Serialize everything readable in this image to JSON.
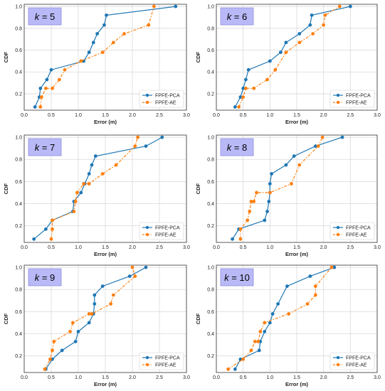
{
  "colors": {
    "pca": "#1f77b4",
    "ae": "#ff7f0e"
  },
  "chart_data": [
    {
      "type": "line",
      "title": "k = 5",
      "k_value": "5",
      "xlabel": "Error (m)",
      "ylabel": "CDF",
      "xlim": [
        0,
        3
      ],
      "ylim": [
        0.05,
        1.02
      ],
      "xticks": [
        "0.0",
        "0.5",
        "1.0",
        "1.5",
        "2.0",
        "2.5",
        "3.0"
      ],
      "yticks": [
        "0.2",
        "0.4",
        "0.6",
        "0.8",
        "1.0"
      ],
      "grid": true,
      "legend_position": "bottom-right",
      "series": [
        {
          "name": "FPFE-PCA",
          "style": "solid",
          "x": [
            0.2,
            0.28,
            0.3,
            0.42,
            0.5,
            1.1,
            1.2,
            1.28,
            1.35,
            1.48,
            1.52,
            2.8
          ],
          "y": [
            0.08,
            0.17,
            0.25,
            0.33,
            0.42,
            0.5,
            0.58,
            0.67,
            0.75,
            0.83,
            0.92,
            1.0
          ]
        },
        {
          "name": "FPFE-AE",
          "style": "dashed",
          "x": [
            0.3,
            0.32,
            0.4,
            0.52,
            0.65,
            0.75,
            1.05,
            1.45,
            1.65,
            1.85,
            2.3,
            2.4
          ],
          "y": [
            0.08,
            0.17,
            0.25,
            0.25,
            0.33,
            0.42,
            0.5,
            0.58,
            0.67,
            0.75,
            0.83,
            1.0
          ]
        }
      ]
    },
    {
      "type": "line",
      "title": "k = 6",
      "k_value": "6",
      "xlabel": "Error (m)",
      "ylabel": "CDF",
      "xlim": [
        0,
        3
      ],
      "ylim": [
        0.05,
        1.02
      ],
      "xticks": [
        "0.0",
        "0.5",
        "1.0",
        "1.5",
        "2.0",
        "2.5",
        "3.0"
      ],
      "yticks": [
        "0.2",
        "0.4",
        "0.6",
        "0.8",
        "1.0"
      ],
      "grid": true,
      "legend_position": "bottom-right",
      "series": [
        {
          "name": "FPFE-PCA",
          "style": "solid",
          "x": [
            0.35,
            0.45,
            0.5,
            0.55,
            0.6,
            1.0,
            1.2,
            1.3,
            1.55,
            1.75,
            1.78,
            2.5
          ],
          "y": [
            0.08,
            0.17,
            0.25,
            0.33,
            0.42,
            0.5,
            0.58,
            0.67,
            0.75,
            0.83,
            0.92,
            1.0
          ]
        },
        {
          "name": "FPFE-AE",
          "style": "dashed",
          "x": [
            0.42,
            0.5,
            0.55,
            0.7,
            0.95,
            1.1,
            1.3,
            1.55,
            1.8,
            2.0,
            2.03,
            2.3
          ],
          "y": [
            0.08,
            0.17,
            0.25,
            0.25,
            0.33,
            0.42,
            0.58,
            0.67,
            0.75,
            0.83,
            0.92,
            1.0
          ]
        }
      ]
    },
    {
      "type": "line",
      "title": "k = 7",
      "k_value": "7",
      "xlabel": "Error (m)",
      "ylabel": "CDF",
      "xlim": [
        0,
        3
      ],
      "ylim": [
        0.05,
        1.02
      ],
      "xticks": [
        "0.0",
        "0.5",
        "1.0",
        "1.5",
        "2.0",
        "2.5",
        "3.0"
      ],
      "yticks": [
        "0.2",
        "0.4",
        "0.6",
        "0.8",
        "1.0"
      ],
      "grid": true,
      "legend_position": "bottom-right",
      "series": [
        {
          "name": "FPFE-PCA",
          "style": "solid",
          "x": [
            0.18,
            0.4,
            0.52,
            0.9,
            0.92,
            1.05,
            1.12,
            1.2,
            1.25,
            1.32,
            2.25,
            2.55
          ],
          "y": [
            0.08,
            0.17,
            0.25,
            0.33,
            0.42,
            0.5,
            0.58,
            0.67,
            0.75,
            0.83,
            0.92,
            1.0
          ]
        },
        {
          "name": "FPFE-AE",
          "style": "dashed",
          "x": [
            0.5,
            0.52,
            0.52,
            0.92,
            0.95,
            0.98,
            1.1,
            1.2,
            1.45,
            1.7,
            2.05,
            2.1
          ],
          "y": [
            0.08,
            0.17,
            0.25,
            0.33,
            0.42,
            0.5,
            0.58,
            0.58,
            0.67,
            0.75,
            0.92,
            1.0
          ]
        }
      ]
    },
    {
      "type": "line",
      "title": "k = 8",
      "k_value": "8",
      "xlabel": "Error (m)",
      "ylabel": "CDF",
      "xlim": [
        0,
        3
      ],
      "ylim": [
        0.05,
        1.02
      ],
      "xticks": [
        "0.0",
        "0.5",
        "1.0",
        "1.5",
        "2.0",
        "2.5",
        "3.0"
      ],
      "yticks": [
        "0.2",
        "0.4",
        "0.6",
        "0.8",
        "1.0"
      ],
      "grid": true,
      "legend_position": "bottom-right",
      "series": [
        {
          "name": "FPFE-PCA",
          "style": "solid",
          "x": [
            0.3,
            0.42,
            0.9,
            0.95,
            0.98,
            1.0,
            1.0,
            1.03,
            1.3,
            1.45,
            1.85,
            2.35
          ],
          "y": [
            0.08,
            0.17,
            0.25,
            0.33,
            0.42,
            0.5,
            0.58,
            0.67,
            0.75,
            0.83,
            0.92,
            1.0
          ]
        },
        {
          "name": "FPFE-AE",
          "style": "dashed",
          "x": [
            0.45,
            0.45,
            0.58,
            0.62,
            0.65,
            0.7,
            0.75,
            1.0,
            1.4,
            1.55,
            1.9,
            1.98
          ],
          "y": [
            0.08,
            0.17,
            0.25,
            0.33,
            0.42,
            0.42,
            0.5,
            0.5,
            0.58,
            0.75,
            0.92,
            1.0
          ]
        }
      ]
    },
    {
      "type": "line",
      "title": "k = 9",
      "k_value": "9",
      "xlabel": "Error (m)",
      "ylabel": "CDF",
      "xlim": [
        0,
        3
      ],
      "ylim": [
        0.05,
        1.02
      ],
      "xticks": [
        "0.0",
        "0.5",
        "1.0",
        "1.5",
        "2.0",
        "2.5",
        "3.0"
      ],
      "yticks": [
        "0.2",
        "0.4",
        "0.6",
        "0.8",
        "1.0"
      ],
      "grid": true,
      "legend_position": "bottom-right",
      "series": [
        {
          "name": "FPFE-PCA",
          "style": "solid",
          "x": [
            0.4,
            0.52,
            0.7,
            0.95,
            1.0,
            1.2,
            1.28,
            1.3,
            1.3,
            1.45,
            1.95,
            2.25
          ],
          "y": [
            0.08,
            0.17,
            0.25,
            0.33,
            0.42,
            0.5,
            0.58,
            0.67,
            0.75,
            0.83,
            0.92,
            1.0
          ]
        },
        {
          "name": "FPFE-AE",
          "style": "dashed",
          "x": [
            0.38,
            0.48,
            0.52,
            0.55,
            0.85,
            0.9,
            1.2,
            1.25,
            1.6,
            1.65,
            2.05,
            2.0
          ],
          "y": [
            0.08,
            0.17,
            0.25,
            0.33,
            0.42,
            0.5,
            0.58,
            0.58,
            0.67,
            0.75,
            0.92,
            1.0
          ]
        }
      ]
    },
    {
      "type": "line",
      "title": "k = 10",
      "k_value": "10",
      "xlabel": "Error (m)",
      "ylabel": "CDF",
      "xlim": [
        0,
        3
      ],
      "ylim": [
        0.05,
        1.02
      ],
      "xticks": [
        "0.0",
        "0.5",
        "1.0",
        "1.5",
        "2.0",
        "2.5",
        "3.0"
      ],
      "yticks": [
        "0.2",
        "0.4",
        "0.6",
        "0.8",
        "1.0"
      ],
      "grid": true,
      "legend_position": "bottom-right",
      "series": [
        {
          "name": "FPFE-PCA",
          "style": "solid",
          "x": [
            0.35,
            0.45,
            0.8,
            0.82,
            0.9,
            1.0,
            1.05,
            1.15,
            1.32,
            1.75,
            2.2,
            2.2
          ],
          "y": [
            0.08,
            0.17,
            0.25,
            0.33,
            0.42,
            0.5,
            0.58,
            0.67,
            0.83,
            0.92,
            1.0,
            1.0
          ]
        },
        {
          "name": "FPFE-AE",
          "style": "dashed",
          "x": [
            0.22,
            0.5,
            0.65,
            0.72,
            0.78,
            0.82,
            0.9,
            1.35,
            1.7,
            1.85,
            1.85,
            2.15
          ],
          "y": [
            0.08,
            0.17,
            0.25,
            0.33,
            0.33,
            0.42,
            0.5,
            0.58,
            0.67,
            0.75,
            0.83,
            1.0
          ]
        }
      ]
    }
  ]
}
